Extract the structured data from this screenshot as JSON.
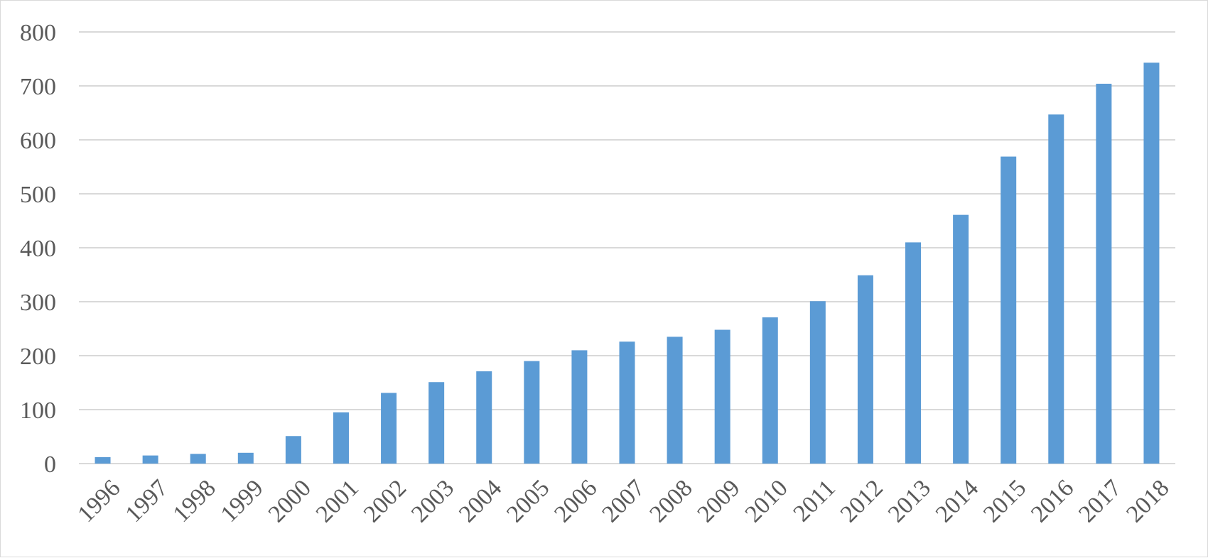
{
  "chart_data": {
    "type": "bar",
    "categories": [
      "1996",
      "1997",
      "1998",
      "1999",
      "2000",
      "2001",
      "2002",
      "2003",
      "2004",
      "2005",
      "2006",
      "2007",
      "2008",
      "2009",
      "2010",
      "2011",
      "2012",
      "2013",
      "2014",
      "2015",
      "2016",
      "2017",
      "2018"
    ],
    "values": [
      12,
      15,
      18,
      20,
      51,
      95,
      131,
      151,
      171,
      190,
      210,
      226,
      235,
      248,
      271,
      301,
      349,
      410,
      461,
      569,
      647,
      704,
      743
    ],
    "title": "",
    "xlabel": "",
    "ylabel": "",
    "ylim": [
      0,
      800
    ],
    "yticks": [
      "0",
      "100",
      "200",
      "300",
      "400",
      "500",
      "600",
      "700",
      "800"
    ],
    "grid": true,
    "legend": "none",
    "bar_color": "#5b9bd5",
    "grid_color": "#d9d9d9",
    "tick_color": "#595959"
  }
}
